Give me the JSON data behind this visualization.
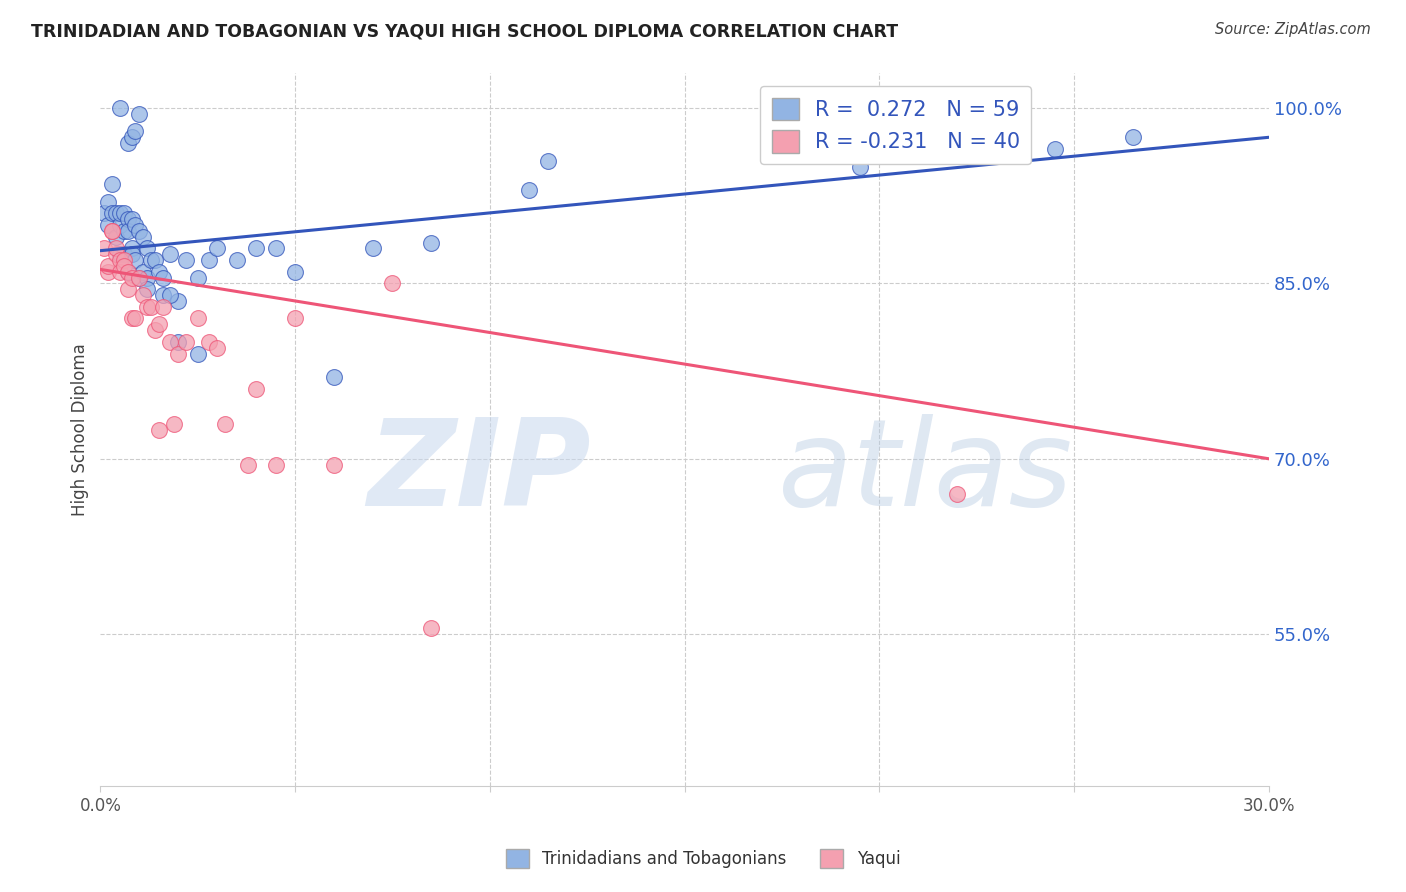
{
  "title": "TRINIDADIAN AND TOBAGONIAN VS YAQUI HIGH SCHOOL DIPLOMA CORRELATION CHART",
  "source": "Source: ZipAtlas.com",
  "ylabel": "High School Diploma",
  "ytick_labels": [
    "100.0%",
    "85.0%",
    "70.0%",
    "55.0%"
  ],
  "ytick_values": [
    1.0,
    0.85,
    0.7,
    0.55
  ],
  "xmin": 0.0,
  "xmax": 0.3,
  "ymin": 0.42,
  "ymax": 1.03,
  "legend_blue_label": "R =  0.272   N = 59",
  "legend_pink_label": "R = -0.231   N = 40",
  "legend_bottom_blue": "Trinidadians and Tobagonians",
  "legend_bottom_pink": "Yaqui",
  "watermark_zip": "ZIP",
  "watermark_atlas": "atlas",
  "blue_color": "#92B4E3",
  "pink_color": "#F4A0B0",
  "blue_line_color": "#3355BB",
  "pink_line_color": "#EE5577",
  "blue_line_x": [
    0.0,
    0.3
  ],
  "blue_line_y": [
    0.878,
    0.975
  ],
  "pink_line_x": [
    0.0,
    0.3
  ],
  "pink_line_y": [
    0.862,
    0.7
  ],
  "blue_x": [
    0.001,
    0.002,
    0.002,
    0.003,
    0.003,
    0.004,
    0.004,
    0.005,
    0.005,
    0.005,
    0.006,
    0.006,
    0.006,
    0.007,
    0.007,
    0.007,
    0.008,
    0.008,
    0.008,
    0.009,
    0.009,
    0.01,
    0.01,
    0.011,
    0.011,
    0.012,
    0.012,
    0.013,
    0.014,
    0.015,
    0.016,
    0.018,
    0.02,
    0.022,
    0.025,
    0.028,
    0.03,
    0.035,
    0.04,
    0.045,
    0.05,
    0.06,
    0.07,
    0.085,
    0.11,
    0.005,
    0.007,
    0.008,
    0.009,
    0.01,
    0.115,
    0.195,
    0.245,
    0.265,
    0.012,
    0.016,
    0.018,
    0.02,
    0.025
  ],
  "blue_y": [
    0.91,
    0.92,
    0.9,
    0.91,
    0.935,
    0.91,
    0.89,
    0.9,
    0.91,
    0.875,
    0.895,
    0.91,
    0.875,
    0.905,
    0.895,
    0.86,
    0.905,
    0.88,
    0.875,
    0.9,
    0.87,
    0.895,
    0.855,
    0.89,
    0.86,
    0.88,
    0.855,
    0.87,
    0.87,
    0.86,
    0.855,
    0.875,
    0.835,
    0.87,
    0.855,
    0.87,
    0.88,
    0.87,
    0.88,
    0.88,
    0.86,
    0.77,
    0.88,
    0.885,
    0.93,
    1.0,
    0.97,
    0.975,
    0.98,
    0.995,
    0.955,
    0.95,
    0.965,
    0.975,
    0.845,
    0.84,
    0.84,
    0.8,
    0.79
  ],
  "pink_x": [
    0.001,
    0.002,
    0.002,
    0.003,
    0.003,
    0.004,
    0.004,
    0.005,
    0.005,
    0.006,
    0.006,
    0.007,
    0.007,
    0.008,
    0.008,
    0.009,
    0.01,
    0.011,
    0.012,
    0.013,
    0.014,
    0.015,
    0.016,
    0.018,
    0.02,
    0.022,
    0.025,
    0.028,
    0.03,
    0.032,
    0.038,
    0.04,
    0.045,
    0.05,
    0.06,
    0.075,
    0.085,
    0.015,
    0.019,
    0.22
  ],
  "pink_y": [
    0.88,
    0.86,
    0.865,
    0.895,
    0.895,
    0.875,
    0.88,
    0.87,
    0.86,
    0.87,
    0.865,
    0.86,
    0.845,
    0.855,
    0.82,
    0.82,
    0.855,
    0.84,
    0.83,
    0.83,
    0.81,
    0.815,
    0.83,
    0.8,
    0.79,
    0.8,
    0.82,
    0.8,
    0.795,
    0.73,
    0.695,
    0.76,
    0.695,
    0.82,
    0.695,
    0.85,
    0.555,
    0.725,
    0.73,
    0.67
  ]
}
